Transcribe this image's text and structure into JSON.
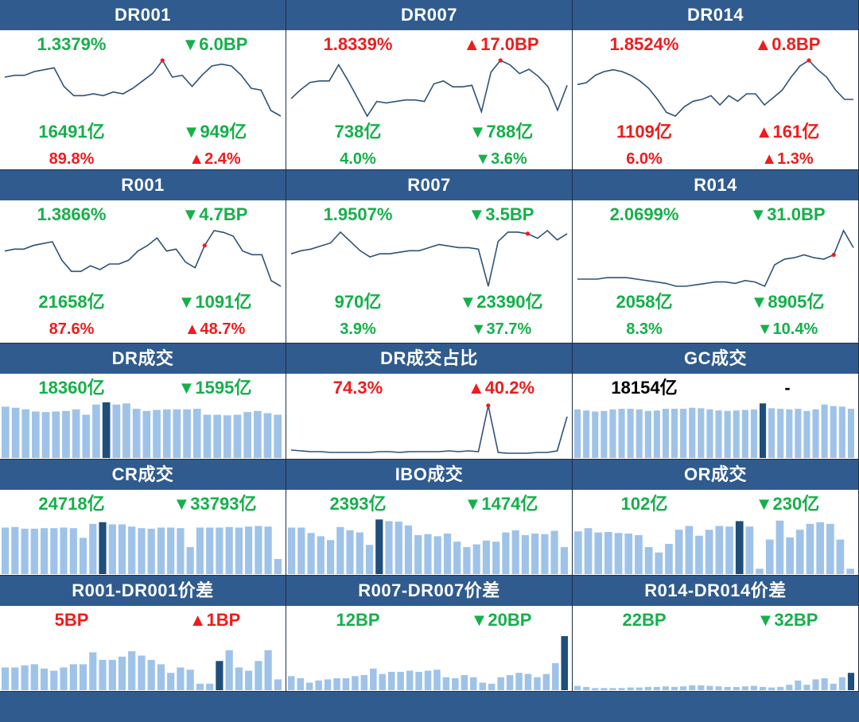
{
  "colors": {
    "header": "#2f5b8f",
    "up": "#ee1c1c",
    "down": "#15b04a",
    "line": "#2f5278",
    "bar": "#9fc3e8",
    "bar_hi": "#1f4e79"
  },
  "panels": [
    {
      "title": "DR001",
      "type": "line",
      "rows": [
        {
          "l": "1.3379%",
          "lc": "grn",
          "r": "▼6.0BP",
          "rc": "dn"
        },
        {
          "l": "16491亿",
          "lc": "grn",
          "r": "▼949亿",
          "rc": "dn"
        },
        {
          "l": "89.8%",
          "lc": "red",
          "r": "▲2.4%",
          "rc": "up"
        }
      ],
      "series": [
        1.3,
        1.31,
        1.31,
        1.33,
        1.34,
        1.35,
        1.25,
        1.2,
        1.2,
        1.21,
        1.2,
        1.22,
        1.21,
        1.24,
        1.28,
        1.32,
        1.39,
        1.3,
        1.31,
        1.25,
        1.31,
        1.36,
        1.37,
        1.36,
        1.31,
        1.24,
        1.23,
        1.12,
        1.09
      ],
      "hi": 16
    },
    {
      "title": "DR007",
      "type": "line",
      "rows": [
        {
          "l": "1.8339%",
          "lc": "red",
          "r": "▲17.0BP",
          "rc": "up"
        },
        {
          "l": "738亿",
          "lc": "grn",
          "r": "▼788亿",
          "rc": "dn"
        },
        {
          "l": "4.0%",
          "lc": "grn",
          "r": "▼3.6%",
          "rc": "dn"
        }
      ],
      "series": [
        1.6,
        1.66,
        1.71,
        1.72,
        1.72,
        1.83,
        1.72,
        1.6,
        1.48,
        1.58,
        1.57,
        1.58,
        1.59,
        1.59,
        1.58,
        1.7,
        1.72,
        1.68,
        1.68,
        1.69,
        1.51,
        1.78,
        1.86,
        1.83,
        1.77,
        1.8,
        1.75,
        1.68,
        1.52,
        1.69
      ],
      "hi": 22
    },
    {
      "title": "DR014",
      "type": "line",
      "rows": [
        {
          "l": "1.8524%",
          "lc": "red",
          "r": "▲0.8BP",
          "rc": "up"
        },
        {
          "l": "1109亿",
          "lc": "red",
          "r": "▲161亿",
          "rc": "up"
        },
        {
          "l": "6.0%",
          "lc": "red",
          "r": "▲1.3%",
          "rc": "up"
        }
      ],
      "series": [
        1.72,
        1.73,
        1.77,
        1.79,
        1.8,
        1.79,
        1.77,
        1.74,
        1.7,
        1.64,
        1.57,
        1.55,
        1.6,
        1.63,
        1.64,
        1.66,
        1.61,
        1.66,
        1.63,
        1.67,
        1.67,
        1.61,
        1.65,
        1.69,
        1.76,
        1.82,
        1.85,
        1.8,
        1.76,
        1.69,
        1.64,
        1.64
      ],
      "hi": 26
    },
    {
      "title": "R001",
      "type": "line",
      "rows": [
        {
          "l": "1.3866%",
          "lc": "grn",
          "r": "▼4.7BP",
          "rc": "dn"
        },
        {
          "l": "21658亿",
          "lc": "grn",
          "r": "▼1091亿",
          "rc": "dn"
        },
        {
          "l": "87.6%",
          "lc": "red",
          "r": "▲48.7%",
          "rc": "up"
        }
      ],
      "series": [
        1.33,
        1.34,
        1.34,
        1.36,
        1.37,
        1.38,
        1.28,
        1.22,
        1.22,
        1.25,
        1.23,
        1.26,
        1.26,
        1.28,
        1.33,
        1.36,
        1.4,
        1.33,
        1.34,
        1.27,
        1.24,
        1.36,
        1.44,
        1.43,
        1.41,
        1.33,
        1.31,
        1.31,
        1.17,
        1.14
      ],
      "hi": 21
    },
    {
      "title": "R007",
      "type": "line",
      "rows": [
        {
          "l": "1.9507%",
          "lc": "grn",
          "r": "▼3.5BP",
          "rc": "dn"
        },
        {
          "l": "970亿",
          "lc": "grn",
          "r": "▼23390亿",
          "rc": "dn"
        },
        {
          "l": "3.9%",
          "lc": "grn",
          "r": "▼37.7%",
          "rc": "dn"
        }
      ],
      "series": [
        1.82,
        1.84,
        1.85,
        1.87,
        1.89,
        1.96,
        1.9,
        1.84,
        1.8,
        1.82,
        1.82,
        1.83,
        1.84,
        1.84,
        1.86,
        1.88,
        1.87,
        1.86,
        1.86,
        1.85,
        1.61,
        1.9,
        1.96,
        1.96,
        1.95,
        1.92,
        1.97,
        1.91,
        1.95
      ],
      "hi": 24
    },
    {
      "title": "R014",
      "type": "line",
      "rows": [
        {
          "l": "2.0699%",
          "lc": "grn",
          "r": "▼31.0BP",
          "rc": "dn"
        },
        {
          "l": "2058亿",
          "lc": "grn",
          "r": "▼8905亿",
          "rc": "dn"
        },
        {
          "l": "8.3%",
          "lc": "grn",
          "r": "▼10.4%",
          "rc": "dn"
        }
      ],
      "series": [
        1.86,
        1.86,
        1.86,
        1.87,
        1.87,
        1.87,
        1.86,
        1.85,
        1.84,
        1.83,
        1.81,
        1.81,
        1.82,
        1.83,
        1.84,
        1.84,
        1.83,
        1.85,
        1.84,
        1.81,
        1.96,
        2.0,
        2.01,
        2.03,
        2.01,
        2.0,
        2.03,
        2.2,
        2.08
      ],
      "hi": 26
    },
    {
      "title": "DR成交",
      "type": "bar",
      "rows": [
        {
          "l": "18360亿",
          "lc": "grn",
          "r": "▼1595亿",
          "rc": "dn"
        }
      ],
      "series": [
        0.95,
        0.93,
        0.9,
        0.86,
        0.85,
        0.86,
        0.87,
        0.9,
        0.8,
        0.99,
        1.03,
        0.99,
        1.01,
        0.91,
        0.87,
        0.89,
        0.9,
        0.9,
        0.9,
        0.91,
        0.8,
        0.8,
        0.79,
        0.8,
        0.85,
        0.87,
        0.83,
        0.8
      ],
      "hi": 10
    },
    {
      "title": "DR成交占比",
      "type": "line",
      "rows": [
        {
          "l": "74.3%",
          "lc": "red",
          "r": "▲40.2%",
          "rc": "up"
        }
      ],
      "series": [
        0.18,
        0.17,
        0.16,
        0.16,
        0.15,
        0.15,
        0.15,
        0.15,
        0.15,
        0.16,
        0.16,
        0.15,
        0.16,
        0.16,
        0.16,
        0.16,
        0.17,
        0.16,
        0.17,
        0.16,
        0.74,
        0.15,
        0.14,
        0.14,
        0.14,
        0.15,
        0.15,
        0.17,
        0.6
      ],
      "hi": 20
    },
    {
      "title": "GC成交",
      "type": "bar",
      "rows": [
        {
          "l": "18154亿",
          "lc": "blk",
          "r": "-",
          "rc": "blk"
        }
      ],
      "series": [
        0.9,
        0.88,
        0.86,
        0.87,
        0.9,
        0.91,
        0.91,
        0.9,
        0.87,
        0.88,
        0.91,
        0.91,
        0.91,
        0.93,
        0.92,
        0.9,
        0.88,
        0.87,
        0.88,
        0.89,
        0.9,
        1.01,
        0.92,
        0.91,
        0.9,
        0.91,
        0.87,
        0.9,
        0.99,
        0.96,
        0.95,
        0.91
      ],
      "hi": 21
    },
    {
      "title": "CR成交",
      "type": "bar",
      "rows": [
        {
          "l": "24718亿",
          "lc": "grn",
          "r": "▼33793亿",
          "rc": "dn"
        }
      ],
      "series": [
        0.86,
        0.87,
        0.84,
        0.84,
        0.85,
        0.85,
        0.86,
        0.85,
        0.67,
        0.93,
        0.96,
        0.92,
        0.92,
        0.88,
        0.85,
        0.84,
        0.86,
        0.86,
        0.85,
        0.5,
        0.86,
        0.86,
        0.86,
        0.87,
        0.86,
        0.88,
        0.89,
        0.88,
        0.28
      ],
      "hi": 10
    },
    {
      "title": "IBO成交",
      "type": "bar",
      "rows": [
        {
          "l": "2393亿",
          "lc": "grn",
          "r": "▼1474亿",
          "rc": "dn"
        }
      ],
      "series": [
        0.86,
        0.86,
        0.76,
        0.7,
        0.63,
        0.87,
        0.81,
        0.77,
        0.54,
        1.01,
        0.98,
        0.97,
        0.9,
        0.72,
        0.74,
        0.7,
        0.75,
        0.6,
        0.5,
        0.55,
        0.62,
        0.6,
        0.77,
        0.81,
        0.72,
        0.75,
        0.74,
        0.8,
        0.5
      ],
      "hi": 9
    },
    {
      "title": "OR成交",
      "type": "bar",
      "rows": [
        {
          "l": "102亿",
          "lc": "grn",
          "r": "▼230亿",
          "rc": "dn"
        }
      ],
      "series": [
        0.79,
        0.85,
        0.77,
        0.78,
        0.76,
        0.75,
        0.72,
        0.5,
        0.4,
        0.56,
        0.82,
        0.89,
        0.71,
        0.82,
        0.89,
        0.88,
        0.98,
        0.88,
        0.1,
        0.64,
        0.99,
        0.68,
        0.82,
        0.93,
        0.96,
        0.93,
        0.64,
        0.1
      ],
      "hi": 16
    },
    {
      "title": "R001-DR001价差",
      "type": "bar",
      "rows": [
        {
          "l": "5BP",
          "lc": "red",
          "r": "▲1BP",
          "rc": "up"
        }
      ],
      "series": [
        0.42,
        0.42,
        0.46,
        0.48,
        0.4,
        0.36,
        0.42,
        0.48,
        0.48,
        0.7,
        0.56,
        0.56,
        0.62,
        0.72,
        0.64,
        0.56,
        0.48,
        0.32,
        0.42,
        0.38,
        0.12,
        0.12,
        0.54,
        0.74,
        0.42,
        0.36,
        0.54,
        0.74,
        0.2
      ],
      "hi": 22
    },
    {
      "title": "R007-DR007价差",
      "type": "bar",
      "rows": [
        {
          "l": "12BP",
          "lc": "grn",
          "r": "▼20BP",
          "rc": "dn"
        }
      ],
      "series": [
        0.26,
        0.22,
        0.14,
        0.18,
        0.2,
        0.22,
        0.22,
        0.26,
        0.28,
        0.4,
        0.3,
        0.34,
        0.34,
        0.36,
        0.34,
        0.36,
        0.38,
        0.24,
        0.22,
        0.28,
        0.24,
        0.14,
        0.12,
        0.24,
        0.28,
        0.32,
        0.3,
        0.24,
        0.3,
        0.5,
        1.0
      ],
      "hi": 30
    },
    {
      "title": "R014-DR014价差",
      "type": "bar",
      "rows": [
        {
          "l": "22BP",
          "lc": "grn",
          "r": "▼32BP",
          "rc": "dn"
        }
      ],
      "series": [
        0.08,
        0.06,
        0.04,
        0.04,
        0.04,
        0.04,
        0.05,
        0.05,
        0.06,
        0.06,
        0.07,
        0.06,
        0.07,
        0.09,
        0.09,
        0.08,
        0.07,
        0.06,
        0.06,
        0.07,
        0.08,
        0.06,
        0.05,
        0.06,
        0.1,
        0.18,
        0.1,
        0.2,
        0.22,
        0.12,
        0.24,
        0.32
      ],
      "hi": 31
    }
  ]
}
